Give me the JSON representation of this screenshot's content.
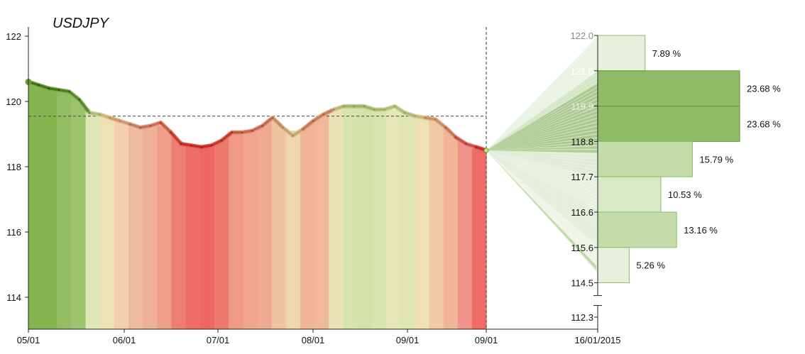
{
  "chart_data": {
    "type": "area",
    "title": "USDJPY",
    "history": {
      "x_tick_labels": [
        "05/01",
        "06/01",
        "07/01",
        "08/01",
        "09/01",
        "09/01"
      ],
      "y_ticks": [
        114,
        116,
        118,
        120,
        122
      ],
      "ylim": [
        113.0,
        122.6
      ],
      "reference_level": 119.55,
      "points": [
        {
          "day": 0,
          "value": 120.6
        },
        {
          "day": 0.5,
          "value": 120.5
        },
        {
          "day": 1,
          "value": 120.4
        },
        {
          "day": 1.5,
          "value": 120.35
        },
        {
          "day": 2,
          "value": 120.3
        },
        {
          "day": 2.5,
          "value": 120.05
        },
        {
          "day": 3,
          "value": 119.65
        },
        {
          "day": 3.5,
          "value": 119.6
        },
        {
          "day": 4,
          "value": 119.5
        },
        {
          "day": 4.5,
          "value": 119.4
        },
        {
          "day": 5,
          "value": 119.3
        },
        {
          "day": 5.5,
          "value": 119.2
        },
        {
          "day": 6,
          "value": 119.25
        },
        {
          "day": 6.5,
          "value": 119.35
        },
        {
          "day": 7,
          "value": 119.05
        },
        {
          "day": 7.5,
          "value": 118.7
        },
        {
          "day": 8,
          "value": 118.65
        },
        {
          "day": 8.5,
          "value": 118.6
        },
        {
          "day": 9,
          "value": 118.65
        },
        {
          "day": 9.5,
          "value": 118.8
        },
        {
          "day": 10,
          "value": 119.05
        },
        {
          "day": 10.5,
          "value": 119.05
        },
        {
          "day": 11,
          "value": 119.1
        },
        {
          "day": 11.5,
          "value": 119.25
        },
        {
          "day": 12,
          "value": 119.5
        },
        {
          "day": 12.5,
          "value": 119.2
        },
        {
          "day": 13,
          "value": 118.95
        },
        {
          "day": 13.5,
          "value": 119.15
        },
        {
          "day": 14,
          "value": 119.4
        },
        {
          "day": 14.5,
          "value": 119.6
        },
        {
          "day": 15,
          "value": 119.75
        },
        {
          "day": 15.5,
          "value": 119.85
        },
        {
          "day": 16,
          "value": 119.85
        },
        {
          "day": 16.5,
          "value": 119.85
        },
        {
          "day": 17,
          "value": 119.75
        },
        {
          "day": 17.5,
          "value": 119.75
        },
        {
          "day": 18,
          "value": 119.85
        },
        {
          "day": 18.5,
          "value": 119.65
        },
        {
          "day": 19,
          "value": 119.55
        },
        {
          "day": 19.5,
          "value": 119.5
        },
        {
          "day": 20,
          "value": 119.45
        },
        {
          "day": 20.5,
          "value": 119.2
        },
        {
          "day": 21,
          "value": 118.9
        },
        {
          "day": 21.5,
          "value": 118.7
        },
        {
          "day": 22,
          "value": 118.6
        },
        {
          "day": 22.5,
          "value": 118.5
        }
      ],
      "band_colors": [
        "#86b550",
        "#86b550",
        "#93bd62",
        "#9cc46d",
        "#dfe7b8",
        "#efe2b2",
        "#f2cfae",
        "#efbb9e",
        "#efb098",
        "#ef9e88",
        "#ec7f70",
        "#ee6d64",
        "#ef6763",
        "#ee7a6c",
        "#ef9a82",
        "#f1a58d",
        "#efaa91",
        "#f1c39f",
        "#efd6ad",
        "#f0b497",
        "#f0b999",
        "#e8e2b4",
        "#d6e3aa",
        "#d3e2a6",
        "#d7e4ab",
        "#e2e7b5",
        "#dfe6b2",
        "#eee1b3",
        "#f0caa5",
        "#f0b496",
        "#f0938a",
        "#ef6b66"
      ]
    },
    "forecast": {
      "date_label": "16/01/2015",
      "axis_ticks": [
        122.0,
        121.0,
        119.9,
        118.8,
        117.7,
        116.6,
        115.6,
        114.5,
        112.3
      ],
      "bins": [
        {
          "low": 121.0,
          "high": 122.0,
          "pct": 7.89,
          "label": "7.89 %"
        },
        {
          "low": 119.9,
          "high": 121.0,
          "pct": 23.68,
          "label": "23.68 %"
        },
        {
          "low": 118.8,
          "high": 119.9,
          "pct": 23.68,
          "label": "23.68 %"
        },
        {
          "low": 117.7,
          "high": 118.8,
          "pct": 15.79,
          "label": "15.79 %"
        },
        {
          "low": 116.6,
          "high": 117.7,
          "pct": 10.53,
          "label": "10.53 %"
        },
        {
          "low": 115.6,
          "high": 116.6,
          "pct": 13.16,
          "label": "13.16 %"
        },
        {
          "low": 114.5,
          "high": 115.6,
          "pct": 5.26,
          "label": "5.26 %"
        }
      ]
    },
    "colors": {
      "bin_strong": "#8fbb68",
      "bin_light": "#d2e4bd",
      "fan": "#6aa23a",
      "axis": "#222222",
      "reference": "#555555"
    }
  }
}
